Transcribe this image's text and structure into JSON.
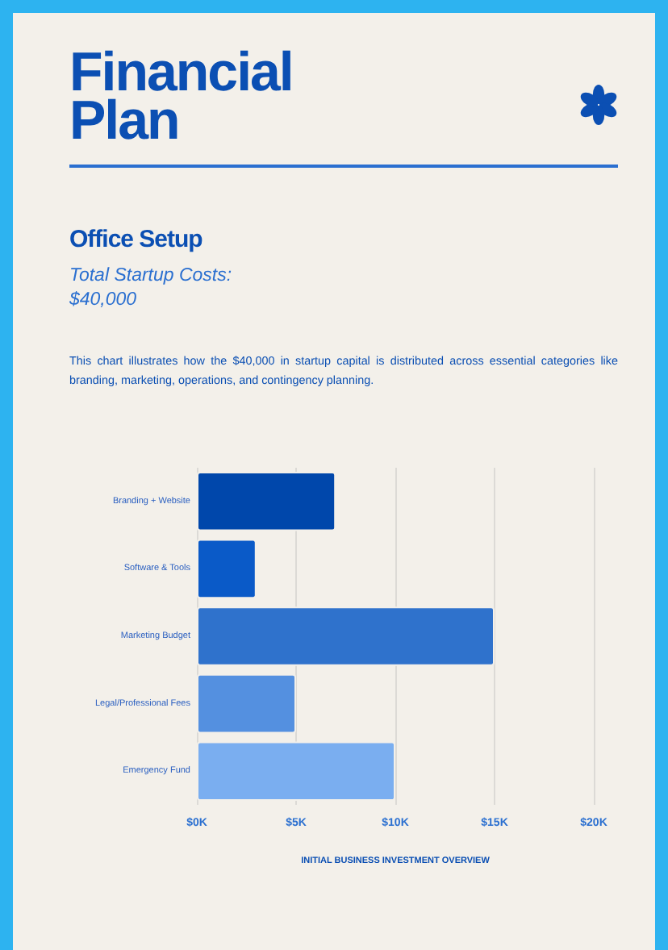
{
  "chart_data": {
    "type": "bar",
    "orientation": "horizontal",
    "title": "Financial Plan",
    "subtitle": "Office Setup",
    "annotations": [
      "Total Startup Costs: $40,000",
      "This chart illustrates how the $40,000 in startup capital is distributed across essential categories like branding, marketing, operations, and contingency planning."
    ],
    "xlabel": "INITIAL BUSINESS INVESTMENT OVERVIEW",
    "categories": [
      "Branding + Website",
      "Software & Tools",
      "Marketing Budget",
      "Legal/Professional Fees",
      "Emergency Fund"
    ],
    "values": [
      7000,
      3000,
      15000,
      5000,
      10000
    ],
    "colors": [
      "#0047ab",
      "#0a5ac8",
      "#2f72cc",
      "#5490e0",
      "#7aaef0"
    ],
    "xlim": [
      0,
      20000
    ],
    "xticks": [
      {
        "value": 0,
        "label": "$0K"
      },
      {
        "value": 5000,
        "label": "$5K"
      },
      {
        "value": 10000,
        "label": "$10K"
      },
      {
        "value": 15000,
        "label": "$15K"
      },
      {
        "value": 20000,
        "label": "$20K"
      }
    ],
    "grid": "x"
  }
}
